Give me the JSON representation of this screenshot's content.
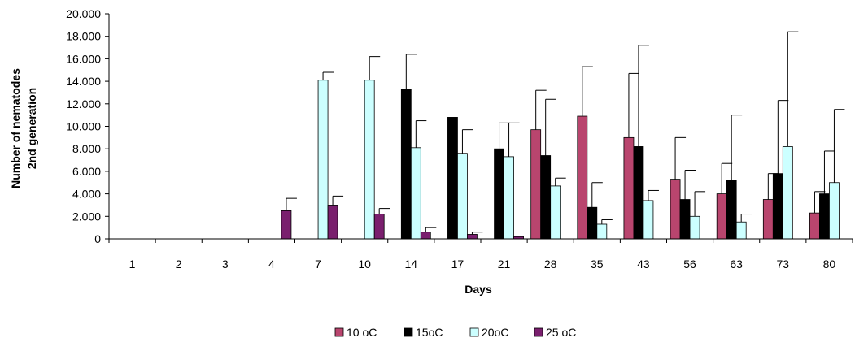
{
  "chart_data": {
    "type": "bar",
    "title": "",
    "xlabel": "Days",
    "ylabel_lines": [
      "Number of nematodes",
      "2nd  generation"
    ],
    "categories": [
      "1",
      "2",
      "3",
      "4",
      "7",
      "10",
      "14",
      "17",
      "21",
      "28",
      "35",
      "43",
      "56",
      "63",
      "73",
      "80"
    ],
    "ylim": [
      0,
      20000
    ],
    "y_ticks": [
      {
        "value": 0,
        "label": "0"
      },
      {
        "value": 2000,
        "label": "2.000"
      },
      {
        "value": 4000,
        "label": "4.000"
      },
      {
        "value": 6000,
        "label": "6.000"
      },
      {
        "value": 8000,
        "label": "8.000"
      },
      {
        "value": 10000,
        "label": "10.000"
      },
      {
        "value": 12000,
        "label": "12.000"
      },
      {
        "value": 14000,
        "label": "14.000"
      },
      {
        "value": 16000,
        "label": "16.000"
      },
      {
        "value": 18000,
        "label": "18.000"
      },
      {
        "value": 20000,
        "label": "20.000"
      }
    ],
    "grid": false,
    "legend_position": "bottom",
    "series": [
      {
        "name": "10 oC",
        "color": "#b9456e",
        "values": [
          0,
          0,
          0,
          0,
          0,
          0,
          0,
          0,
          0,
          9700,
          10900,
          9000,
          5300,
          4000,
          3500,
          2300
        ],
        "errors": [
          0,
          0,
          0,
          0,
          0,
          0,
          0,
          0,
          0,
          3500,
          4400,
          5700,
          3700,
          2700,
          2300,
          1900
        ]
      },
      {
        "name": "15oC",
        "color": "#000000",
        "values": [
          0,
          0,
          0,
          0,
          0,
          0,
          13300,
          10800,
          8000,
          7400,
          2800,
          8200,
          3500,
          5200,
          5800,
          4000
        ],
        "errors": [
          0,
          0,
          0,
          0,
          0,
          0,
          3100,
          0,
          2300,
          5000,
          2200,
          9000,
          2600,
          5800,
          6500,
          3800
        ]
      },
      {
        "name": "20oC",
        "color": "#ccffff",
        "values": [
          0,
          0,
          0,
          0,
          14100,
          14100,
          8100,
          7600,
          7300,
          4700,
          1300,
          3400,
          2000,
          1500,
          8200,
          5000
        ],
        "errors": [
          0,
          0,
          0,
          0,
          700,
          2100,
          2400,
          2100,
          3000,
          700,
          400,
          900,
          2200,
          700,
          10200,
          6500
        ]
      },
      {
        "name": "25 oC",
        "color": "#7a1f6e",
        "values": [
          0,
          0,
          0,
          2500,
          3000,
          2200,
          600,
          400,
          200,
          0,
          0,
          0,
          0,
          0,
          0,
          0
        ],
        "errors": [
          0,
          0,
          0,
          1100,
          800,
          500,
          400,
          200,
          0,
          0,
          0,
          0,
          0,
          0,
          0,
          0
        ]
      }
    ]
  }
}
